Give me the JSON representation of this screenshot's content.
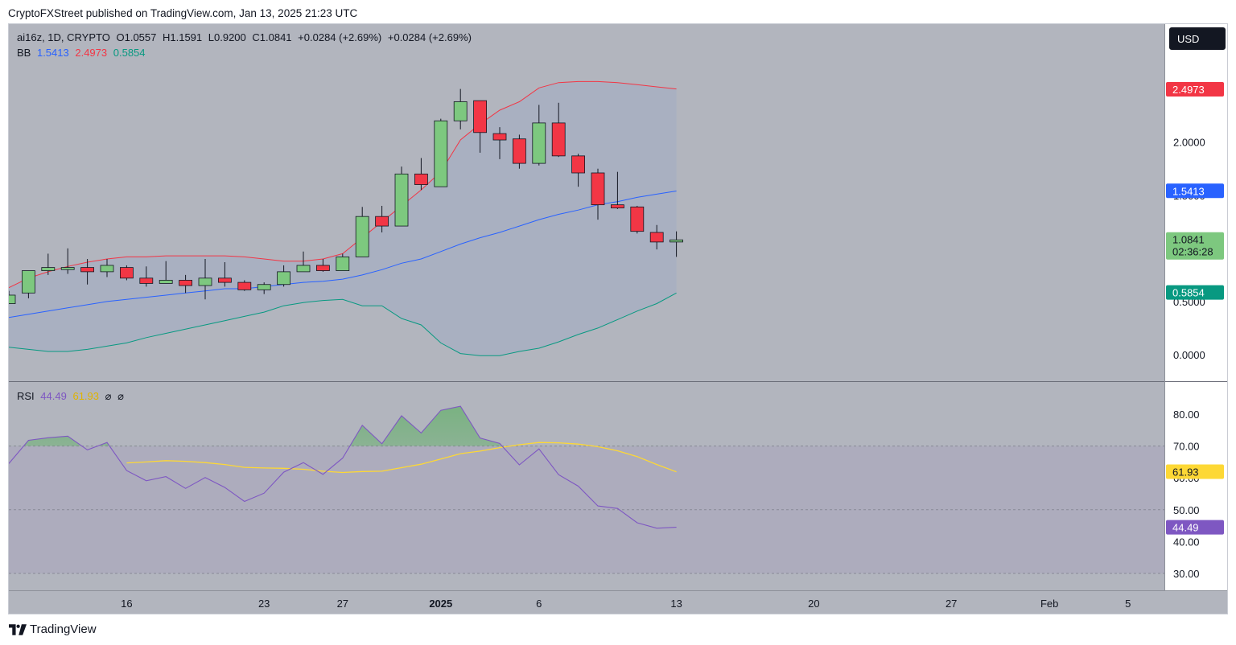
{
  "caption": "CryptoFXStreet published on TradingView.com, Jan 13, 2025 21:23 UTC",
  "brand": "TradingView",
  "currency_button": "USD",
  "legend": {
    "symbol": "ai16z, 1D, CRYPTO",
    "open": "O1.0557",
    "high": "H1.1591",
    "low": "L0.9200",
    "close": "C1.0841",
    "change": "+0.0284 (+2.69%)",
    "change2": "+0.0284 (+2.69%)",
    "bb_label": "BB",
    "bb_basis": "1.5413",
    "bb_upper": "2.4973",
    "bb_lower": "0.5854",
    "rsi_label": "RSI",
    "rsi_value": "44.49",
    "rsi_ma": "61.93",
    "rsi_extra1": "⌀",
    "rsi_extra2": "⌀"
  },
  "colors": {
    "up": "#7dc87f",
    "down": "#f23645",
    "bb_upper": "#f23645",
    "bb_basis": "#2962ff",
    "bb_lower": "#089981",
    "rsi": "#7e57c2",
    "rsi_ma": "#fdd835",
    "price_badge": "#7dc87f"
  },
  "chart_data": [
    {
      "type": "candlestick",
      "title": "ai16z, 1D, CRYPTO",
      "y_ticks": [
        "2.0000",
        "1.5000",
        "1.0000",
        "0.5000",
        "0.0000"
      ],
      "ylim": [
        -0.25,
        3.11
      ],
      "x_ticks": [
        {
          "label": "16",
          "day": 16
        },
        {
          "label": "23",
          "day": 23
        },
        {
          "label": "27",
          "day": 27
        },
        {
          "label": "2025",
          "day": 32
        },
        {
          "label": "6",
          "day": 37
        },
        {
          "label": "13",
          "day": 44
        },
        {
          "label": "20",
          "day": 51
        },
        {
          "label": "27",
          "day": 58
        },
        {
          "label": "Feb",
          "day": 63
        },
        {
          "label": "5",
          "day": 67
        }
      ],
      "candles": [
        {
          "day": 10,
          "o": 0.48,
          "h": 0.6,
          "l": 0.48,
          "c": 0.56
        },
        {
          "day": 11,
          "o": 0.58,
          "h": 0.79,
          "l": 0.53,
          "c": 0.79
        },
        {
          "day": 12,
          "o": 0.79,
          "h": 0.95,
          "l": 0.75,
          "c": 0.82
        },
        {
          "day": 13,
          "o": 0.8,
          "h": 1.0,
          "l": 0.76,
          "c": 0.82
        },
        {
          "day": 14,
          "o": 0.82,
          "h": 0.9,
          "l": 0.66,
          "c": 0.78
        },
        {
          "day": 15,
          "o": 0.78,
          "h": 0.9,
          "l": 0.73,
          "c": 0.84
        },
        {
          "day": 16,
          "o": 0.82,
          "h": 0.84,
          "l": 0.7,
          "c": 0.72
        },
        {
          "day": 17,
          "o": 0.72,
          "h": 0.83,
          "l": 0.64,
          "c": 0.67
        },
        {
          "day": 18,
          "o": 0.67,
          "h": 0.88,
          "l": 0.67,
          "c": 0.7
        },
        {
          "day": 19,
          "o": 0.7,
          "h": 0.75,
          "l": 0.58,
          "c": 0.65
        },
        {
          "day": 20,
          "o": 0.65,
          "h": 0.9,
          "l": 0.52,
          "c": 0.72
        },
        {
          "day": 21,
          "o": 0.72,
          "h": 0.87,
          "l": 0.64,
          "c": 0.68
        },
        {
          "day": 22,
          "o": 0.68,
          "h": 0.7,
          "l": 0.6,
          "c": 0.61
        },
        {
          "day": 23,
          "o": 0.61,
          "h": 0.68,
          "l": 0.57,
          "c": 0.66
        },
        {
          "day": 24,
          "o": 0.66,
          "h": 0.84,
          "l": 0.64,
          "c": 0.78
        },
        {
          "day": 25,
          "o": 0.78,
          "h": 0.97,
          "l": 0.78,
          "c": 0.84
        },
        {
          "day": 26,
          "o": 0.84,
          "h": 0.9,
          "l": 0.78,
          "c": 0.79
        },
        {
          "day": 27,
          "o": 0.79,
          "h": 0.95,
          "l": 0.79,
          "c": 0.92
        },
        {
          "day": 28,
          "o": 0.92,
          "h": 1.39,
          "l": 0.92,
          "c": 1.3
        },
        {
          "day": 29,
          "o": 1.3,
          "h": 1.4,
          "l": 1.15,
          "c": 1.21
        },
        {
          "day": 30,
          "o": 1.21,
          "h": 1.77,
          "l": 1.21,
          "c": 1.7
        },
        {
          "day": 31,
          "o": 1.7,
          "h": 1.85,
          "l": 1.55,
          "c": 1.6
        },
        {
          "day": 32,
          "o": 1.58,
          "h": 2.22,
          "l": 1.58,
          "c": 2.2
        },
        {
          "day": 33,
          "o": 2.2,
          "h": 2.5,
          "l": 2.12,
          "c": 2.38
        },
        {
          "day": 34,
          "o": 2.39,
          "h": 2.39,
          "l": 1.9,
          "c": 2.09
        },
        {
          "day": 35,
          "o": 2.08,
          "h": 2.14,
          "l": 1.84,
          "c": 2.02
        },
        {
          "day": 36,
          "o": 2.03,
          "h": 2.07,
          "l": 1.75,
          "c": 1.8
        },
        {
          "day": 37,
          "o": 1.8,
          "h": 2.35,
          "l": 1.78,
          "c": 2.18
        },
        {
          "day": 38,
          "o": 2.18,
          "h": 2.37,
          "l": 1.86,
          "c": 1.87
        },
        {
          "day": 39,
          "o": 1.87,
          "h": 1.89,
          "l": 1.58,
          "c": 1.71
        },
        {
          "day": 40,
          "o": 1.71,
          "h": 1.75,
          "l": 1.27,
          "c": 1.41
        },
        {
          "day": 41,
          "o": 1.41,
          "h": 1.72,
          "l": 1.37,
          "c": 1.38
        },
        {
          "day": 42,
          "o": 1.39,
          "h": 1.4,
          "l": 1.14,
          "c": 1.16
        },
        {
          "day": 43,
          "o": 1.15,
          "h": 1.22,
          "l": 0.99,
          "c": 1.06
        },
        {
          "day": 44,
          "o": 1.06,
          "h": 1.16,
          "l": 0.92,
          "c": 1.08
        }
      ],
      "bb_upper": [
        [
          10,
          0.63
        ],
        [
          11,
          0.72
        ],
        [
          12,
          0.78
        ],
        [
          13,
          0.83
        ],
        [
          14,
          0.87
        ],
        [
          15,
          0.9
        ],
        [
          16,
          0.92
        ],
        [
          17,
          0.92
        ],
        [
          18,
          0.93
        ],
        [
          19,
          0.93
        ],
        [
          20,
          0.93
        ],
        [
          21,
          0.93
        ],
        [
          22,
          0.92
        ],
        [
          23,
          0.9
        ],
        [
          24,
          0.88
        ],
        [
          25,
          0.88
        ],
        [
          26,
          0.9
        ],
        [
          27,
          0.95
        ],
        [
          28,
          1.1
        ],
        [
          29,
          1.25
        ],
        [
          30,
          1.4
        ],
        [
          31,
          1.55
        ],
        [
          32,
          1.72
        ],
        [
          33,
          2.02
        ],
        [
          34,
          2.17
        ],
        [
          35,
          2.3
        ],
        [
          36,
          2.38
        ],
        [
          37,
          2.51
        ],
        [
          38,
          2.56
        ],
        [
          39,
          2.57
        ],
        [
          40,
          2.57
        ],
        [
          41,
          2.56
        ],
        [
          42,
          2.54
        ],
        [
          43,
          2.52
        ],
        [
          44,
          2.5
        ]
      ],
      "bb_basis": [
        [
          10,
          0.35
        ],
        [
          11,
          0.38
        ],
        [
          12,
          0.41
        ],
        [
          13,
          0.44
        ],
        [
          14,
          0.47
        ],
        [
          15,
          0.5
        ],
        [
          16,
          0.52
        ],
        [
          17,
          0.54
        ],
        [
          18,
          0.56
        ],
        [
          19,
          0.58
        ],
        [
          20,
          0.6
        ],
        [
          21,
          0.62
        ],
        [
          22,
          0.62
        ],
        [
          23,
          0.64
        ],
        [
          24,
          0.66
        ],
        [
          25,
          0.68
        ],
        [
          26,
          0.69
        ],
        [
          27,
          0.71
        ],
        [
          28,
          0.75
        ],
        [
          29,
          0.8
        ],
        [
          30,
          0.86
        ],
        [
          31,
          0.9
        ],
        [
          32,
          0.97
        ],
        [
          33,
          1.04
        ],
        [
          34,
          1.1
        ],
        [
          35,
          1.15
        ],
        [
          36,
          1.21
        ],
        [
          37,
          1.27
        ],
        [
          38,
          1.32
        ],
        [
          39,
          1.36
        ],
        [
          40,
          1.41
        ],
        [
          41,
          1.44
        ],
        [
          42,
          1.48
        ],
        [
          43,
          1.51
        ],
        [
          44,
          1.54
        ]
      ],
      "bb_lower": [
        [
          10,
          0.07
        ],
        [
          11,
          0.05
        ],
        [
          12,
          0.03
        ],
        [
          13,
          0.03
        ],
        [
          14,
          0.05
        ],
        [
          15,
          0.08
        ],
        [
          16,
          0.11
        ],
        [
          17,
          0.16
        ],
        [
          18,
          0.2
        ],
        [
          19,
          0.24
        ],
        [
          20,
          0.28
        ],
        [
          21,
          0.32
        ],
        [
          22,
          0.36
        ],
        [
          23,
          0.4
        ],
        [
          24,
          0.46
        ],
        [
          25,
          0.49
        ],
        [
          26,
          0.51
        ],
        [
          27,
          0.52
        ],
        [
          28,
          0.46
        ],
        [
          29,
          0.46
        ],
        [
          30,
          0.34
        ],
        [
          31,
          0.28
        ],
        [
          32,
          0.11
        ],
        [
          33,
          0.01
        ],
        [
          34,
          -0.01
        ],
        [
          35,
          -0.01
        ],
        [
          36,
          0.03
        ],
        [
          37,
          0.06
        ],
        [
          38,
          0.12
        ],
        [
          39,
          0.19
        ],
        [
          40,
          0.25
        ],
        [
          41,
          0.33
        ],
        [
          42,
          0.41
        ],
        [
          43,
          0.48
        ],
        [
          44,
          0.58
        ]
      ],
      "last_price": "1.0841",
      "countdown": "02:36:28"
    },
    {
      "type": "line",
      "title": "RSI",
      "y_ticks": [
        "80.00",
        "70.00",
        "60.00",
        "50.00",
        "40.00",
        "30.00"
      ],
      "ylim": [
        24.7,
        90.1
      ],
      "bands": {
        "upper": 70,
        "middle": 50,
        "lower": 30
      },
      "series": [
        {
          "name": "RSI",
          "values": [
            [
              10,
              64.5
            ],
            [
              11,
              71.8
            ],
            [
              12,
              72.6
            ],
            [
              13,
              73.1
            ],
            [
              14,
              68.8
            ],
            [
              15,
              71.1
            ],
            [
              16,
              62.3
            ],
            [
              17,
              59.1
            ],
            [
              18,
              60.4
            ],
            [
              19,
              56.7
            ],
            [
              20,
              60.1
            ],
            [
              21,
              57.0
            ],
            [
              22,
              52.6
            ],
            [
              23,
              55.2
            ],
            [
              24,
              61.8
            ],
            [
              25,
              64.8
            ],
            [
              26,
              61.1
            ],
            [
              27,
              66.2
            ],
            [
              28,
              76.5
            ],
            [
              29,
              70.7
            ],
            [
              30,
              79.5
            ],
            [
              31,
              74.1
            ],
            [
              32,
              81.2
            ],
            [
              33,
              82.5
            ],
            [
              34,
              72.5
            ],
            [
              35,
              70.8
            ],
            [
              36,
              64.1
            ],
            [
              37,
              69.1
            ],
            [
              38,
              61.0
            ],
            [
              39,
              57.4
            ],
            [
              40,
              51.2
            ],
            [
              41,
              50.4
            ],
            [
              42,
              45.9
            ],
            [
              43,
              44.2
            ],
            [
              44,
              44.5
            ]
          ]
        },
        {
          "name": "RSI-based MA",
          "values": [
            [
              16,
              64.7
            ],
            [
              17,
              65.0
            ],
            [
              18,
              65.4
            ],
            [
              19,
              65.2
            ],
            [
              20,
              64.8
            ],
            [
              21,
              64.2
            ],
            [
              22,
              63.3
            ],
            [
              23,
              63.1
            ],
            [
              24,
              63.0
            ],
            [
              25,
              62.7
            ],
            [
              26,
              62.1
            ],
            [
              27,
              61.7
            ],
            [
              28,
              62.0
            ],
            [
              29,
              62.1
            ],
            [
              30,
              63.2
            ],
            [
              31,
              64.3
            ],
            [
              32,
              65.9
            ],
            [
              33,
              67.6
            ],
            [
              34,
              68.4
            ],
            [
              35,
              69.5
            ],
            [
              36,
              70.4
            ],
            [
              37,
              71.1
            ],
            [
              38,
              71.0
            ],
            [
              39,
              70.6
            ],
            [
              40,
              69.8
            ],
            [
              41,
              68.5
            ],
            [
              42,
              66.7
            ],
            [
              43,
              64.2
            ],
            [
              44,
              61.9
            ]
          ]
        }
      ]
    }
  ]
}
